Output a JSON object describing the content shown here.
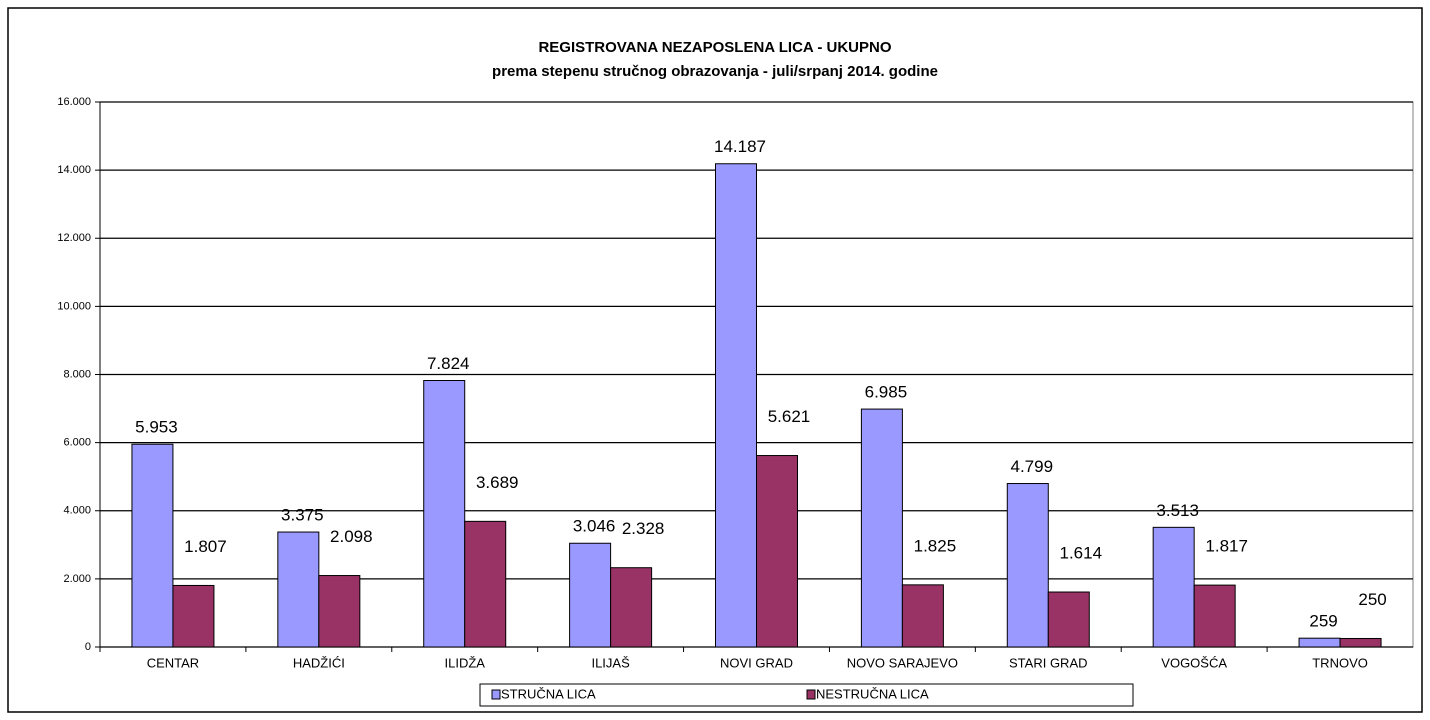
{
  "chart_data": {
    "type": "bar",
    "title": "REGISTROVANA NEZAPOSLENA LICA - UKUPNO",
    "subtitle": "prema stepenu stručnog obrazovanja - juli/srpanj 2014. godine",
    "categories": [
      "CENTAR",
      "HADŽIĆI",
      "ILIDŽA",
      "ILIJAŠ",
      "NOVI GRAD",
      "NOVO SARAJEVO",
      "STARI GRAD",
      "VOGOŠĆA",
      "TRNOVO"
    ],
    "series": [
      {
        "name": "STRUČNA LICA",
        "color": "#9999ff",
        "values": [
          5953,
          3375,
          7824,
          3046,
          14187,
          6985,
          4799,
          3513,
          259
        ],
        "value_labels": [
          "5.953",
          "3.375",
          "7.824",
          "3.046",
          "14.187",
          "6.985",
          "4.799",
          "3.513",
          "259"
        ]
      },
      {
        "name": "NESTRUČNA LICA",
        "color": "#993366",
        "values": [
          1807,
          2098,
          3689,
          2328,
          5621,
          1825,
          1614,
          1817,
          250
        ],
        "value_labels": [
          "1.807",
          "2.098",
          "3.689",
          "2.328",
          "5.621",
          "1.825",
          "1.614",
          "1.817",
          "250"
        ]
      }
    ],
    "ylim": [
      0,
      16000
    ],
    "yticks": [
      0,
      {
        "value": 2000,
        "label": "2.000"
      },
      {
        "value": 4000,
        "label": "4.000"
      },
      {
        "value": 6000,
        "label": "6.000"
      },
      {
        "value": 8000,
        "label": "8.000"
      },
      {
        "value": 10000,
        "label": "10.000"
      },
      {
        "value": 12000,
        "label": "12.000"
      },
      {
        "value": 14000,
        "label": "14.000"
      },
      {
        "value": 16000,
        "label": "16.000"
      }
    ],
    "grid": true,
    "legend": "bottom"
  }
}
